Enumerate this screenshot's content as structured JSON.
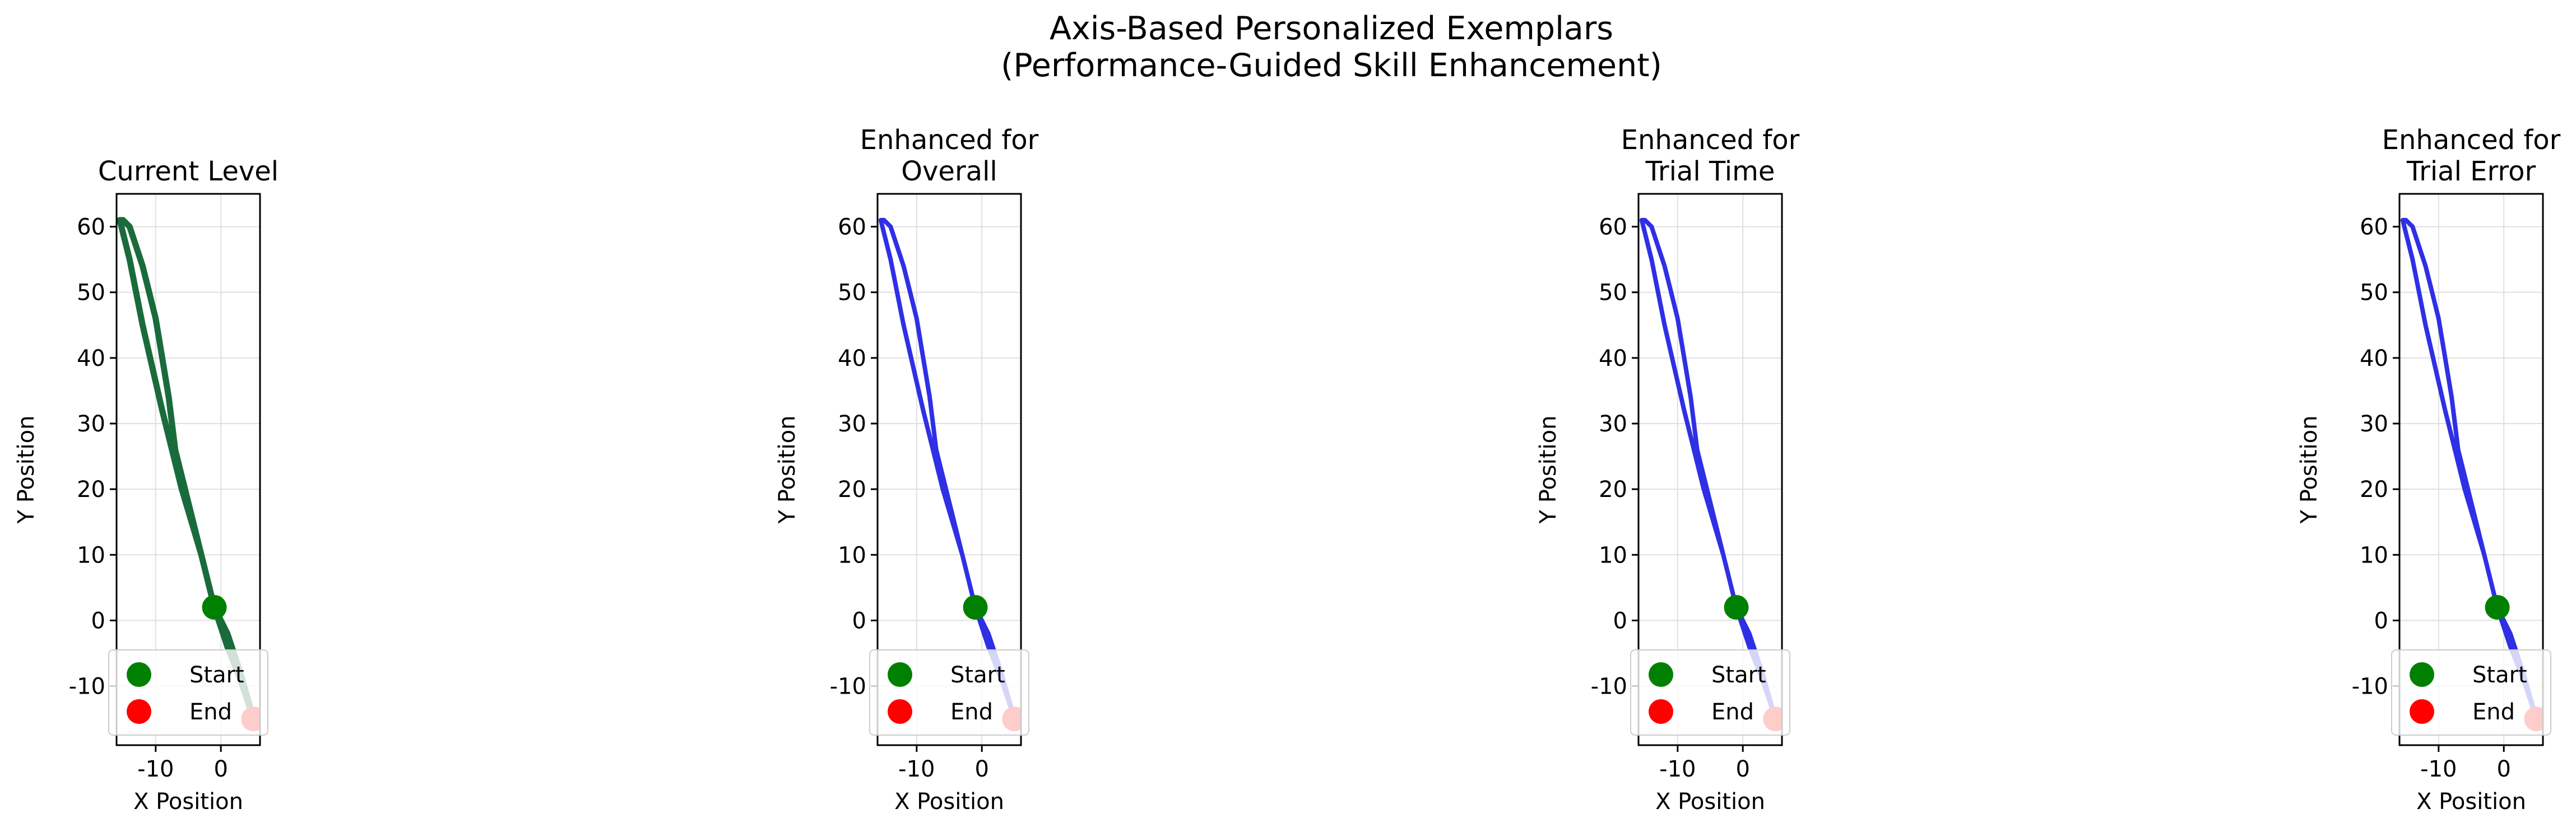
{
  "figure": {
    "suptitle_lines": [
      "Axis-Based Personalized Exemplars",
      "(Performance-Guided Skill Enhancement)"
    ]
  },
  "chart_data": [
    {
      "type": "line",
      "title_lines": [
        "Current Level"
      ],
      "xlabel": "X Position",
      "ylabel": "Y Position",
      "xlim": [
        -16,
        6
      ],
      "ylim": [
        -19,
        65
      ],
      "xticks": [
        -10,
        0
      ],
      "yticks": [
        -10,
        0,
        10,
        20,
        30,
        40,
        50,
        60
      ],
      "grid": true,
      "line_color": "#1a6b3c",
      "legend": {
        "position": "lower-left",
        "entries": [
          {
            "label": "Start",
            "color": "#008000"
          },
          {
            "label": "End",
            "color": "#ff0000"
          }
        ]
      },
      "start_point": [
        -1,
        2
      ],
      "end_point": [
        5,
        -15
      ],
      "series": [
        {
          "x": [
            5,
            3,
            1,
            -1,
            -3,
            -6,
            -9,
            -12,
            -14,
            -15,
            -15.5,
            -15,
            -14,
            -13,
            -12,
            -11,
            -10,
            -9,
            -8,
            -7,
            -5,
            -3,
            -1,
            1,
            3,
            5
          ],
          "y": [
            -15,
            -8,
            -2,
            2,
            10,
            20,
            32,
            45,
            55,
            59,
            61,
            61,
            60,
            57,
            54,
            50,
            46,
            40,
            34,
            26,
            18,
            10,
            2,
            -4,
            -9,
            -15
          ]
        }
      ]
    },
    {
      "type": "line",
      "title_lines": [
        "Enhanced for",
        "Overall"
      ],
      "xlabel": "X Position",
      "ylabel": "Y Position",
      "xlim": [
        -16,
        6
      ],
      "ylim": [
        -19,
        65
      ],
      "xticks": [
        -10,
        0
      ],
      "yticks": [
        -10,
        0,
        10,
        20,
        30,
        40,
        50,
        60
      ],
      "grid": true,
      "line_color": "#2f2fe6",
      "legend": {
        "position": "lower-left",
        "entries": [
          {
            "label": "Start",
            "color": "#008000"
          },
          {
            "label": "End",
            "color": "#ff0000"
          }
        ]
      },
      "start_point": [
        -1,
        2
      ],
      "end_point": [
        5,
        -15
      ],
      "series": [
        {
          "x": [
            5,
            3,
            1,
            -1,
            -3,
            -6,
            -9,
            -12,
            -14,
            -15,
            -15.5,
            -15,
            -14,
            -13,
            -12,
            -11,
            -10,
            -9,
            -8,
            -7,
            -5,
            -3,
            -1,
            1,
            3,
            5
          ],
          "y": [
            -15,
            -8,
            -2,
            2,
            10,
            20,
            32,
            45,
            55,
            59,
            61,
            61,
            60,
            57,
            54,
            50,
            46,
            40,
            34,
            26,
            18,
            10,
            2,
            -4,
            -9,
            -15
          ]
        }
      ]
    },
    {
      "type": "line",
      "title_lines": [
        "Enhanced for",
        "Trial Time"
      ],
      "xlabel": "X Position",
      "ylabel": "Y Position",
      "xlim": [
        -16,
        6
      ],
      "ylim": [
        -19,
        65
      ],
      "xticks": [
        -10,
        0
      ],
      "yticks": [
        -10,
        0,
        10,
        20,
        30,
        40,
        50,
        60
      ],
      "grid": true,
      "line_color": "#2f2fe6",
      "legend": {
        "position": "lower-left",
        "entries": [
          {
            "label": "Start",
            "color": "#008000"
          },
          {
            "label": "End",
            "color": "#ff0000"
          }
        ]
      },
      "start_point": [
        -1,
        2
      ],
      "end_point": [
        5,
        -15
      ],
      "series": [
        {
          "x": [
            5,
            3,
            1,
            -1,
            -3,
            -6,
            -9,
            -12,
            -14,
            -15,
            -15.5,
            -15,
            -14,
            -13,
            -12,
            -11,
            -10,
            -9,
            -8,
            -7,
            -5,
            -3,
            -1,
            1,
            3,
            5
          ],
          "y": [
            -15,
            -8,
            -2,
            2,
            10,
            20,
            32,
            45,
            55,
            59,
            61,
            61,
            60,
            57,
            54,
            50,
            46,
            40,
            34,
            26,
            18,
            10,
            2,
            -4,
            -9,
            -15
          ]
        }
      ]
    },
    {
      "type": "line",
      "title_lines": [
        "Enhanced for",
        "Trial Error"
      ],
      "xlabel": "X Position",
      "ylabel": "Y Position",
      "xlim": [
        -16,
        6
      ],
      "ylim": [
        -19,
        65
      ],
      "xticks": [
        -10,
        0
      ],
      "yticks": [
        -10,
        0,
        10,
        20,
        30,
        40,
        50,
        60
      ],
      "grid": true,
      "line_color": "#2f2fe6",
      "legend": {
        "position": "lower-left",
        "entries": [
          {
            "label": "Start",
            "color": "#008000"
          },
          {
            "label": "End",
            "color": "#ff0000"
          }
        ]
      },
      "start_point": [
        -1,
        2
      ],
      "end_point": [
        5,
        -15
      ],
      "series": [
        {
          "x": [
            5,
            3,
            1,
            -1,
            -3,
            -6,
            -9,
            -12,
            -14,
            -15,
            -15.5,
            -15,
            -14,
            -13,
            -12,
            -11,
            -10,
            -9,
            -8,
            -7,
            -5,
            -3,
            -1,
            1,
            3,
            5
          ],
          "y": [
            -15,
            -8,
            -2,
            2,
            10,
            20,
            32,
            45,
            55,
            59,
            61,
            61,
            60,
            57,
            54,
            50,
            46,
            40,
            34,
            26,
            18,
            10,
            2,
            -4,
            -9,
            -15
          ]
        }
      ]
    }
  ]
}
